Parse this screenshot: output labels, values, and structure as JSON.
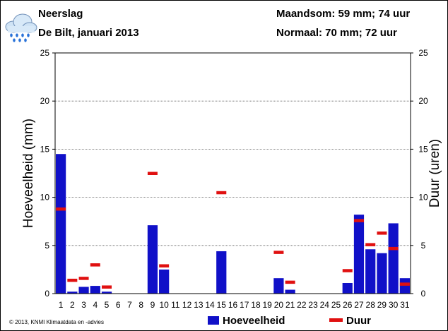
{
  "header": {
    "title": "Neerslag",
    "subtitle": "De Bilt, januari 2013",
    "summary_month": "Maandsom: 59 mm; 74 uur",
    "summary_normal": "Normaal: 70 mm; 72 uur",
    "icon": "rain-cloud-icon"
  },
  "footer": {
    "copyright": "© 2013, KNMI Klimaatdata en -advies"
  },
  "colors": {
    "bar": "#1010c8",
    "duration": "#e01010",
    "grid": "#666666"
  },
  "chart_data": {
    "type": "bar",
    "categories": [
      "1",
      "2",
      "3",
      "4",
      "5",
      "6",
      "7",
      "8",
      "9",
      "10",
      "11",
      "12",
      "13",
      "14",
      "15",
      "16",
      "17",
      "18",
      "19",
      "20",
      "21",
      "22",
      "23",
      "24",
      "25",
      "26",
      "27",
      "28",
      "29",
      "30",
      "31"
    ],
    "ylabel": "Hoeveelheid (mm)",
    "y2label": "Duur (uren)",
    "ylim": [
      0,
      25
    ],
    "y2lim": [
      0,
      25
    ],
    "yticks": [
      "0",
      "5",
      "10",
      "15",
      "20",
      "25"
    ],
    "y2ticks": [
      "0",
      "5",
      "10",
      "15",
      "20",
      "25"
    ],
    "grid": true,
    "legend": {
      "placement": "bottom-right",
      "entries": [
        "Hoeveelheid",
        "Duur"
      ]
    },
    "series": [
      {
        "name": "Hoeveelheid",
        "kind": "bar",
        "axis": "left",
        "values": [
          14.5,
          0.2,
          0.7,
          0.8,
          0.2,
          0,
          0,
          0,
          7.1,
          2.5,
          0,
          0,
          0,
          0,
          4.4,
          0,
          0,
          0,
          0,
          1.6,
          0.4,
          0,
          0,
          0,
          0,
          1.1,
          8.2,
          4.6,
          4.2,
          7.3,
          1.6
        ]
      },
      {
        "name": "Duur",
        "kind": "marker",
        "axis": "right",
        "values": [
          8.8,
          1.4,
          1.6,
          3.0,
          0.7,
          0,
          0,
          0,
          12.5,
          2.9,
          0,
          0,
          0,
          0,
          10.5,
          0,
          0,
          0,
          0,
          4.3,
          1.2,
          0,
          0,
          0,
          0,
          2.4,
          7.6,
          5.1,
          6.3,
          4.7,
          1.0
        ]
      }
    ]
  }
}
